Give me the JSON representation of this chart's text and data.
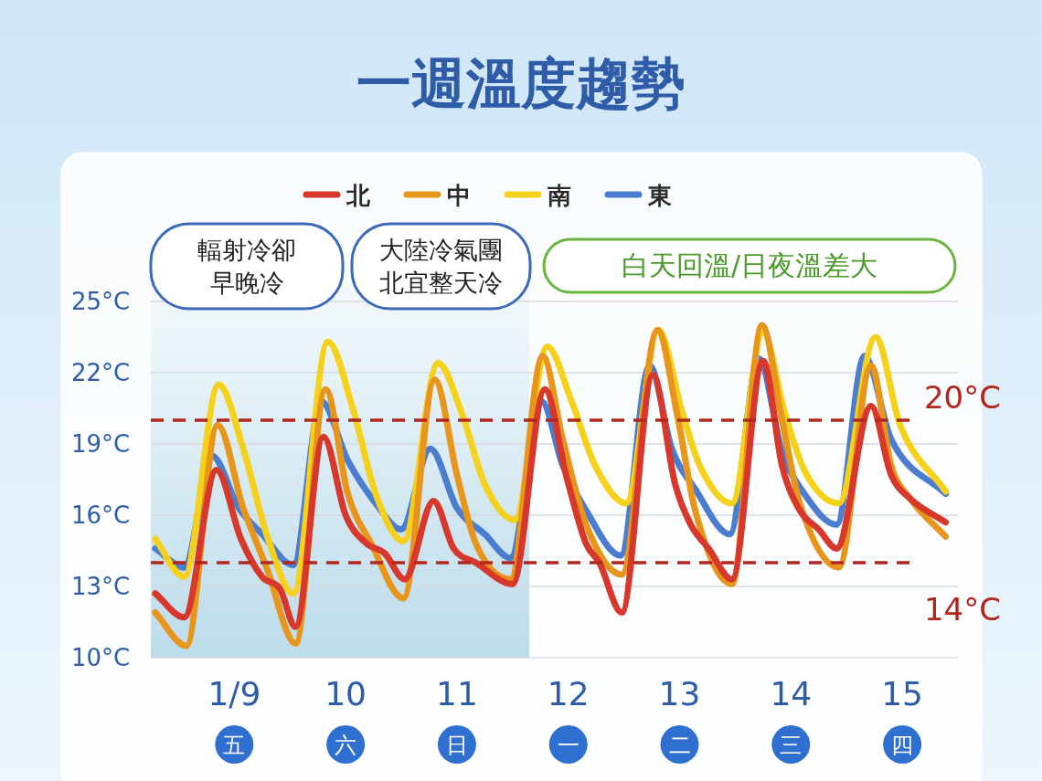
{
  "chart_data": {
    "type": "line",
    "title": "一週溫度趨勢",
    "xlim": [
      8.25,
      15.5
    ],
    "ylim": [
      10,
      25
    ],
    "xticks": [
      {
        "value": 9,
        "label": "1/9"
      },
      {
        "value": 10,
        "label": "10"
      },
      {
        "value": 11,
        "label": "11"
      },
      {
        "value": 12,
        "label": "12"
      },
      {
        "value": 13,
        "label": "13"
      },
      {
        "value": 14,
        "label": "14"
      },
      {
        "value": 15,
        "label": "15"
      }
    ],
    "yticks": [
      {
        "value": 10,
        "label": "10°C"
      },
      {
        "value": 13,
        "label": "13°C"
      },
      {
        "value": 16,
        "label": "16°C"
      },
      {
        "value": 19,
        "label": "19°C"
      },
      {
        "value": 22,
        "label": "22°C"
      },
      {
        "value": 25,
        "label": "25°C"
      }
    ],
    "grid": "y",
    "legend": "top",
    "line_style": "solid",
    "marker": "none",
    "ref_lines": [
      {
        "axis": "y",
        "value": 20,
        "label": "20°C",
        "color": "#b3261e",
        "line_style": "dashed"
      },
      {
        "axis": "y",
        "value": 14,
        "label": "14°C",
        "color": "#b3261e",
        "line_style": "dashed"
      }
    ],
    "bands": [
      {
        "axis": "x",
        "from": 8.25,
        "to": 11.65,
        "label": null,
        "color": "#bcdcea"
      }
    ],
    "annotations": [
      "輻射冷卻",
      "早晚冷",
      "大陸冷氣團",
      "北宜整天冷",
      "白天回溫/日夜溫差大",
      "五",
      "六",
      "日",
      "一",
      "二",
      "三",
      "四"
    ],
    "series": [
      {
        "name": "北",
        "color": "#d8372b",
        "x": [
          8.29,
          8.55,
          8.84,
          9.06,
          9.25,
          9.41,
          9.55,
          9.8,
          10.0,
          10.19,
          10.35,
          10.53,
          10.79,
          10.97,
          11.17,
          11.5,
          11.79,
          11.98,
          12.16,
          12.28,
          12.48,
          12.76,
          12.96,
          13.1,
          13.26,
          13.47,
          13.75,
          13.92,
          14.08,
          14.25,
          14.41,
          14.72,
          14.9,
          15.07,
          15.39
        ],
        "values": [
          12.7,
          11.7,
          17.9,
          15.0,
          13.4,
          12.9,
          11.3,
          19.3,
          16.0,
          14.8,
          14.4,
          13.3,
          16.6,
          14.6,
          14.0,
          13.1,
          21.3,
          17.7,
          14.8,
          14.0,
          11.9,
          21.9,
          17.3,
          15.6,
          14.6,
          13.3,
          22.5,
          18.1,
          16.2,
          15.4,
          14.6,
          20.6,
          17.7,
          16.7,
          15.7
        ]
      },
      {
        "name": "中",
        "color": "#e8951c",
        "x": [
          8.29,
          8.57,
          8.85,
          9.08,
          9.29,
          9.55,
          9.82,
          10.02,
          10.23,
          10.52,
          10.8,
          11.0,
          11.17,
          11.48,
          11.77,
          11.95,
          12.16,
          12.48,
          12.8,
          12.98,
          13.14,
          13.47,
          13.74,
          13.92,
          14.08,
          14.43,
          14.72,
          14.9,
          15.07,
          15.39
        ],
        "values": [
          11.9,
          10.5,
          19.8,
          16.3,
          13.8,
          10.6,
          21.3,
          16.9,
          14.8,
          12.5,
          21.7,
          17.7,
          14.8,
          13.3,
          22.7,
          19.2,
          15.6,
          13.5,
          23.8,
          20.2,
          16.2,
          13.1,
          24.0,
          20.0,
          16.5,
          13.8,
          22.3,
          18.1,
          16.7,
          15.1
        ]
      },
      {
        "name": "南",
        "color": "#f6d11c",
        "x": [
          8.29,
          8.55,
          8.86,
          9.08,
          9.29,
          9.53,
          9.84,
          10.07,
          10.27,
          10.52,
          10.83,
          11.05,
          11.25,
          11.52,
          11.81,
          12.03,
          12.24,
          12.52,
          12.81,
          13.02,
          13.18,
          13.47,
          13.75,
          13.94,
          14.12,
          14.43,
          14.76,
          14.98,
          15.39
        ],
        "values": [
          15.0,
          13.4,
          21.5,
          18.8,
          15.2,
          12.7,
          23.3,
          20.4,
          16.9,
          14.9,
          22.4,
          20.2,
          17.3,
          15.8,
          23.1,
          20.8,
          18.1,
          16.5,
          23.8,
          20.4,
          18.1,
          16.5,
          23.7,
          20.4,
          17.9,
          16.5,
          23.5,
          19.8,
          17.0
        ]
      },
      {
        "name": "東",
        "color": "#4a7ccf",
        "x": [
          8.29,
          8.55,
          8.8,
          9.04,
          9.25,
          9.53,
          9.78,
          10.02,
          10.27,
          10.5,
          10.76,
          11.0,
          11.25,
          11.48,
          11.76,
          11.95,
          12.16,
          12.47,
          12.73,
          12.93,
          13.14,
          13.45,
          13.71,
          13.92,
          14.12,
          14.41,
          14.66,
          14.9,
          15.39
        ],
        "values": [
          14.6,
          13.8,
          18.5,
          16.3,
          15.2,
          13.9,
          20.8,
          18.3,
          16.5,
          15.4,
          18.8,
          16.3,
          15.2,
          14.2,
          20.8,
          18.1,
          16.2,
          14.3,
          22.3,
          18.8,
          17.1,
          15.2,
          22.6,
          18.7,
          16.9,
          15.6,
          22.7,
          19.2,
          16.9
        ]
      }
    ]
  }
}
